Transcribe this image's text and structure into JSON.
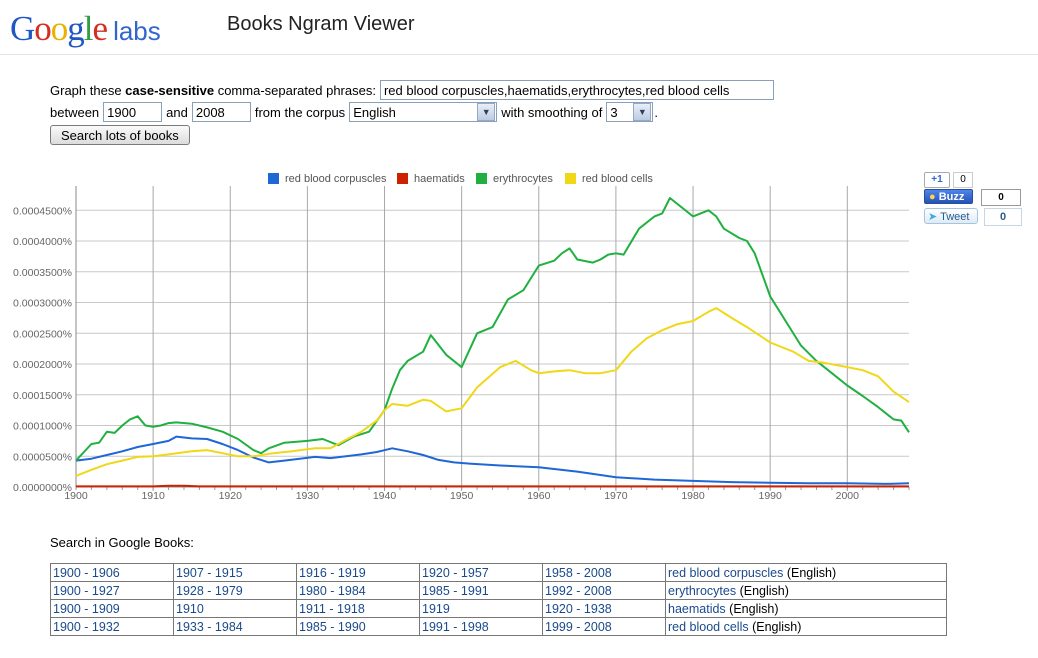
{
  "header": {
    "logo_letters": [
      {
        "ch": "G",
        "color": "#1f57c4"
      },
      {
        "ch": "o",
        "color": "#d62d20"
      },
      {
        "ch": "o",
        "color": "#e8b200"
      },
      {
        "ch": "g",
        "color": "#1f57c4"
      },
      {
        "ch": "l",
        "color": "#2f9e44"
      },
      {
        "ch": "e",
        "color": "#d62d20"
      }
    ],
    "logo_suffix": "labs",
    "title": "Books Ngram Viewer"
  },
  "form": {
    "graph_text_1": "Graph these",
    "graph_text_bold": "case-sensitive",
    "graph_text_2": "comma-separated phrases:",
    "phrases_value": "red blood corpuscles,haematids,erythrocytes,red blood cells",
    "between_label": "between",
    "start_year": "1900",
    "and_label": "and",
    "end_year": "2008",
    "corpus_label": "from the corpus",
    "corpus_value": "English",
    "smoothing_label": "with smoothing of",
    "smoothing_value": "3",
    "period": ".",
    "search_button": "Search lots of books"
  },
  "social": {
    "plusone_label": "+1",
    "plusone_count": "0",
    "buzz_label": "Buzz",
    "buzz_count": "0",
    "tweet_label": "Tweet",
    "tweet_count": "0"
  },
  "chart_data": {
    "type": "line",
    "xlim": [
      1900,
      2008
    ],
    "ylim": [
      0,
      0.00047
    ],
    "x_ticks": [
      1900,
      1910,
      1920,
      1930,
      1940,
      1950,
      1960,
      1970,
      1980,
      1990,
      2000
    ],
    "y_ticks": [
      0,
      5e-05,
      0.0001,
      0.00015,
      0.0002,
      0.00025,
      0.0003,
      0.00035,
      0.0004,
      0.00045
    ],
    "y_tick_labels": [
      "0.0000000%",
      "0.0000500%",
      "0.0001000%",
      "0.0001500%",
      "0.0002000%",
      "0.0002500%",
      "0.0003000%",
      "0.0003500%",
      "0.0004000%",
      "0.0004500%"
    ],
    "grid": true,
    "legend_position": "top",
    "series": [
      {
        "name": "red blood corpuscles",
        "color": "#1f66d6",
        "x": [
          1900,
          1902,
          1904,
          1906,
          1908,
          1910,
          1912,
          1913,
          1915,
          1917,
          1919,
          1921,
          1923,
          1925,
          1927,
          1929,
          1931,
          1933,
          1935,
          1937,
          1939,
          1941,
          1943,
          1945,
          1947,
          1949,
          1951,
          1955,
          1960,
          1965,
          1970,
          1975,
          1980,
          1985,
          1990,
          1995,
          2000,
          2005,
          2008
        ],
        "y": [
          4.3e-05,
          4.6e-05,
          5.2e-05,
          5.8e-05,
          6.5e-05,
          7e-05,
          7.5e-05,
          8.2e-05,
          7.9e-05,
          7.8e-05,
          7e-05,
          6e-05,
          4.8e-05,
          4e-05,
          4.3e-05,
          4.6e-05,
          4.9e-05,
          4.7e-05,
          5e-05,
          5.3e-05,
          5.7e-05,
          6.3e-05,
          5.8e-05,
          5.2e-05,
          4.4e-05,
          4e-05,
          3.8e-05,
          3.5e-05,
          3.2e-05,
          2.5e-05,
          1.6e-05,
          1.2e-05,
          1e-05,
          8e-06,
          7e-06,
          6e-06,
          6e-06,
          5e-06,
          6e-06
        ]
      },
      {
        "name": "haematids",
        "color": "#cc2200",
        "x": [
          1900,
          1910,
          1912,
          1914,
          1916,
          1920,
          1940,
          1960,
          1980,
          2008
        ],
        "y": [
          1e-06,
          1e-06,
          2e-06,
          2e-06,
          1e-06,
          1e-06,
          1e-06,
          1e-06,
          1e-06,
          1e-06
        ]
      },
      {
        "name": "erythrocytes",
        "color": "#20b040",
        "x": [
          1900,
          1902,
          1903,
          1904,
          1905,
          1906,
          1907,
          1908,
          1909,
          1910,
          1911,
          1912,
          1913,
          1915,
          1917,
          1919,
          1921,
          1923,
          1924,
          1925,
          1927,
          1930,
          1932,
          1934,
          1936,
          1938,
          1940,
          1941,
          1942,
          1943,
          1945,
          1946,
          1948,
          1950,
          1952,
          1953,
          1954,
          1956,
          1958,
          1960,
          1962,
          1963,
          1964,
          1965,
          1967,
          1968,
          1969,
          1970,
          1971,
          1973,
          1975,
          1976,
          1977,
          1978,
          1980,
          1982,
          1983,
          1984,
          1986,
          1987,
          1988,
          1990,
          1992,
          1994,
          1996,
          1998,
          2000,
          2002,
          2004,
          2006,
          2007,
          2008
        ],
        "y": [
          4.3e-05,
          7e-05,
          7.2e-05,
          9e-05,
          8.8e-05,
          0.0001,
          0.00011,
          0.000115,
          0.0001,
          9.8e-05,
          0.0001,
          0.000104,
          0.000105,
          0.000103,
          9.7e-05,
          9e-05,
          7.8e-05,
          6e-05,
          5.5e-05,
          6.3e-05,
          7.2e-05,
          7.5e-05,
          7.8e-05,
          6.8e-05,
          8.2e-05,
          9e-05,
          0.000125,
          0.00016,
          0.00019,
          0.000205,
          0.00022,
          0.000247,
          0.000215,
          0.000195,
          0.00025,
          0.000255,
          0.00026,
          0.000305,
          0.00032,
          0.00036,
          0.000368,
          0.00038,
          0.000388,
          0.00037,
          0.000365,
          0.00037,
          0.000378,
          0.00038,
          0.000378,
          0.00042,
          0.00044,
          0.000445,
          0.00047,
          0.00046,
          0.00044,
          0.00045,
          0.00044,
          0.00042,
          0.000405,
          0.0004,
          0.00038,
          0.00031,
          0.00027,
          0.00023,
          0.000205,
          0.000185,
          0.000165,
          0.000148,
          0.00013,
          0.00011,
          0.000108,
          8.9e-05
        ]
      },
      {
        "name": "red blood cells",
        "color": "#f0d818",
        "x": [
          1900,
          1902,
          1904,
          1906,
          1908,
          1910,
          1912,
          1915,
          1917,
          1919,
          1921,
          1923,
          1925,
          1928,
          1931,
          1933,
          1935,
          1937,
          1939,
          1940,
          1941,
          1943,
          1945,
          1946,
          1948,
          1950,
          1952,
          1955,
          1957,
          1959,
          1960,
          1962,
          1964,
          1966,
          1968,
          1970,
          1972,
          1974,
          1976,
          1978,
          1980,
          1982,
          1983,
          1985,
          1987,
          1990,
          1993,
          1995,
          1997,
          2000,
          2002,
          2004,
          2006,
          2008
        ],
        "y": [
          1.8e-05,
          2.8e-05,
          3.7e-05,
          4.3e-05,
          4.9e-05,
          5e-05,
          5.3e-05,
          5.8e-05,
          6e-05,
          5.5e-05,
          5e-05,
          5e-05,
          5.4e-05,
          5.8e-05,
          6.3e-05,
          6.3e-05,
          7.7e-05,
          9e-05,
          0.000108,
          0.000125,
          0.000135,
          0.000132,
          0.000142,
          0.00014,
          0.000123,
          0.000128,
          0.000162,
          0.000195,
          0.000205,
          0.00019,
          0.000185,
          0.000188,
          0.00019,
          0.000185,
          0.000185,
          0.00019,
          0.00022,
          0.000242,
          0.000255,
          0.000265,
          0.00027,
          0.000285,
          0.000291,
          0.000275,
          0.00026,
          0.000235,
          0.00022,
          0.000205,
          0.000202,
          0.000195,
          0.00019,
          0.00018,
          0.000155,
          0.000138
        ]
      }
    ]
  },
  "books": {
    "label": "Search in Google Books:",
    "rows": [
      {
        "ranges": [
          "1900 - 1906",
          "1907 - 1915",
          "1916 - 1919",
          "1920 - 1957",
          "1958 - 2008"
        ],
        "phrase": "red blood corpuscles",
        "corpus": "(English)"
      },
      {
        "ranges": [
          "1900 - 1927",
          "1928 - 1979",
          "1980 - 1984",
          "1985 - 1991",
          "1992 - 2008"
        ],
        "phrase": "erythrocytes",
        "corpus": "(English)"
      },
      {
        "ranges": [
          "1900 - 1909",
          "1910",
          "1911 - 1918",
          "1919",
          "1920 - 1938"
        ],
        "phrase": "haematids",
        "corpus": "(English)"
      },
      {
        "ranges": [
          "1900 - 1932",
          "1933 - 1984",
          "1985 - 1990",
          "1991 - 1998",
          "1999 - 2008"
        ],
        "phrase": "red blood cells",
        "corpus": "(English)"
      }
    ]
  }
}
